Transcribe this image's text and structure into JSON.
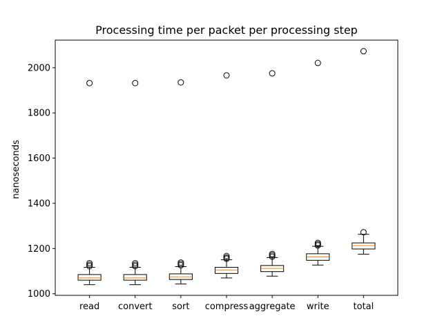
{
  "chart_data": {
    "type": "box",
    "title": "Processing time per packet per processing step",
    "xlabel": "",
    "ylabel": "nanoseconds",
    "ylim": [
      993,
      2122
    ],
    "yticks": [
      1000,
      1200,
      1400,
      1600,
      1800,
      2000
    ],
    "grid": false,
    "categories": [
      "read",
      "convert",
      "sort",
      "compress",
      "aggregate",
      "write",
      "total"
    ],
    "boxes": [
      {
        "category": "read",
        "whislo": 1040,
        "q1": 1060,
        "median": 1070,
        "q3": 1085,
        "whishi": 1117,
        "fliers": [
          1122,
          1128,
          1135,
          1932
        ]
      },
      {
        "category": "convert",
        "whislo": 1040,
        "q1": 1060,
        "median": 1070,
        "q3": 1085,
        "whishi": 1117,
        "fliers": [
          1122,
          1128,
          1135,
          1932
        ]
      },
      {
        "category": "sort",
        "whislo": 1043,
        "q1": 1063,
        "median": 1075,
        "q3": 1088,
        "whishi": 1120,
        "fliers": [
          1126,
          1132,
          1138,
          1935
        ]
      },
      {
        "category": "compress",
        "whislo": 1070,
        "q1": 1090,
        "median": 1105,
        "q3": 1117,
        "whishi": 1150,
        "fliers": [
          1155,
          1160,
          1167,
          1966
        ]
      },
      {
        "category": "aggregate",
        "whislo": 1078,
        "q1": 1098,
        "median": 1112,
        "q3": 1125,
        "whishi": 1160,
        "fliers": [
          1164,
          1170,
          1176,
          1975
        ]
      },
      {
        "category": "write",
        "whislo": 1127,
        "q1": 1148,
        "median": 1163,
        "q3": 1177,
        "whishi": 1210,
        "fliers": [
          1214,
          1219,
          1225,
          2021
        ]
      },
      {
        "category": "total",
        "whislo": 1175,
        "q1": 1198,
        "median": 1213,
        "q3": 1225,
        "whishi": 1263,
        "fliers": [
          1272,
          2073
        ]
      }
    ],
    "colors": {
      "box": "#000000",
      "median": "#ff7f0e",
      "flier": "#000000"
    }
  }
}
